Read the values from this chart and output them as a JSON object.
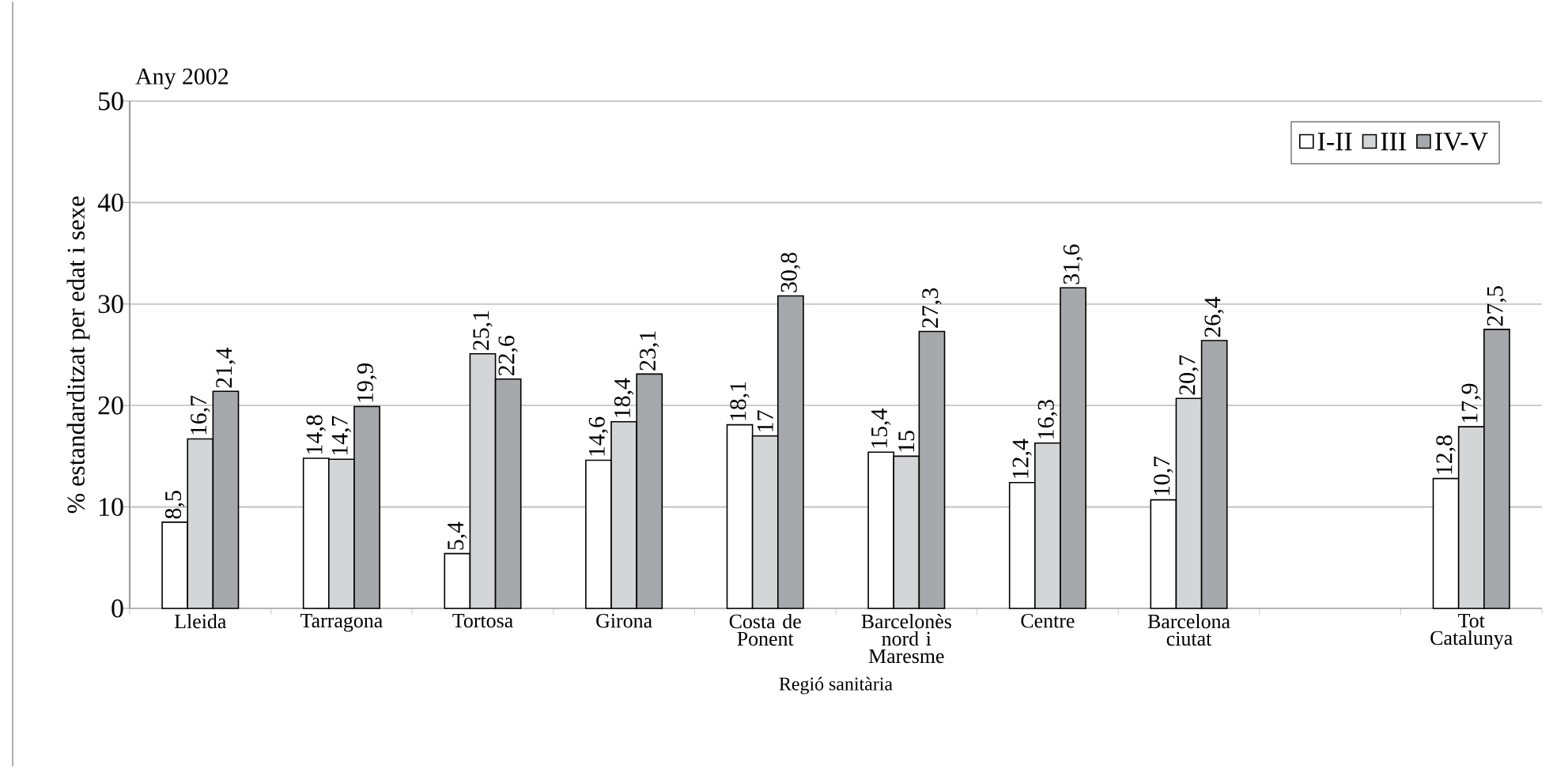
{
  "chart_data": {
    "type": "bar",
    "title": "Any 2002",
    "xlabel": "Regió sanitària",
    "ylabel": "% estandarditzat per edat i sexe",
    "categories": [
      "Lleida",
      "Tarragona",
      "Tortosa",
      "Girona",
      "Costa de Ponent",
      "Barcelonès nord i Maresme",
      "Centre",
      "Barcelona ciutat",
      null,
      "Tot Catalunya"
    ],
    "series": [
      {
        "name": "I-II",
        "color": "#ffffff",
        "values": [
          8.5,
          14.8,
          5.4,
          14.6,
          18.1,
          15.4,
          12.4,
          10.7,
          null,
          12.8
        ],
        "value_labels": [
          "8,5",
          "14,8",
          "5,4",
          "14,6",
          "18,1",
          "15,4",
          "12,4",
          "10,7",
          null,
          "12,8"
        ]
      },
      {
        "name": "III",
        "color": "#d4d5d7",
        "values": [
          16.7,
          14.7,
          25.1,
          18.4,
          17,
          15,
          16.3,
          20.7,
          null,
          17.9
        ],
        "value_labels": [
          "16,7",
          "14,7",
          "25,1",
          "18,4",
          "17",
          "15",
          "16,3",
          "20,7",
          null,
          "17,9"
        ]
      },
      {
        "name": "IV-V",
        "color": "#a7a8ab",
        "values": [
          21.4,
          19.9,
          22.6,
          23.1,
          30.8,
          27.3,
          31.6,
          26.4,
          null,
          27.5
        ],
        "value_labels": [
          "21,4",
          "19,9",
          "22,6",
          "23,1",
          "30,8",
          "27,3",
          "31,6",
          "26,4",
          null,
          "27,5"
        ]
      }
    ],
    "ylim": [
      0,
      50
    ],
    "yticks": [
      0,
      10,
      20,
      30,
      40,
      50
    ],
    "grid": "y",
    "legend": "top right"
  }
}
